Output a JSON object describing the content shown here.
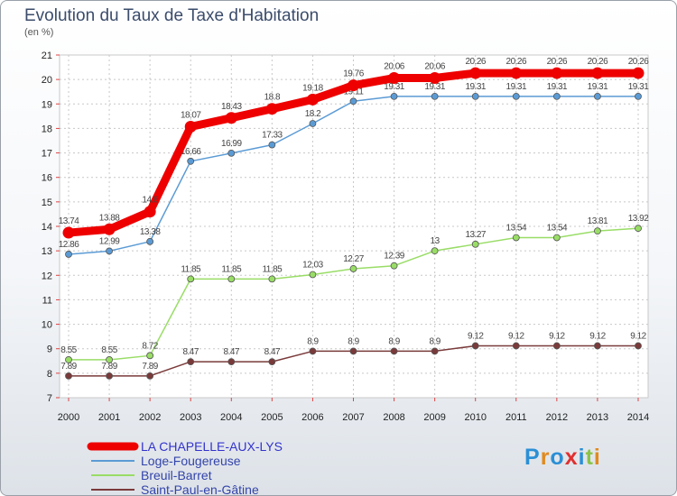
{
  "title": "Evolution du Taux de Taxe d'Habitation",
  "unit_label": "(en %)",
  "logo": "Proxiti",
  "chart_data": {
    "type": "line",
    "title": "Evolution du Taux de Taxe d'Habitation",
    "ylabel": "(en %)",
    "x": [
      "2000",
      "2001",
      "2002",
      "2003",
      "2004",
      "2005",
      "2006",
      "2007",
      "2008",
      "2009",
      "2010",
      "2011",
      "2012",
      "2013",
      "2014"
    ],
    "ylim": [
      7,
      21
    ],
    "yticks": [
      7,
      8,
      9,
      10,
      11,
      12,
      13,
      14,
      15,
      16,
      17,
      18,
      19,
      20,
      21
    ],
    "grid": true,
    "legend": "bottom-left",
    "series": [
      {
        "name": "LA CHAPELLE-AUX-LYS",
        "color": "#ee0000",
        "values": [
          13.74,
          13.88,
          14.6,
          18.07,
          18.43,
          18.8,
          19.18,
          19.76,
          20.06,
          20.06,
          20.26,
          20.26,
          20.26,
          20.26,
          20.26
        ],
        "labels": [
          "13.74",
          "13.88",
          "14.6",
          "18.07",
          "18.43",
          "18.8",
          "19.18",
          "19.76",
          "20.06",
          "20.06",
          "20.26",
          "20.26",
          "20.26",
          "20.26",
          "20.26"
        ]
      },
      {
        "name": "Loge-Fougereuse",
        "color": "#5b9bd5",
        "values": [
          12.86,
          12.99,
          13.38,
          16.66,
          16.99,
          17.33,
          18.2,
          19.11,
          19.31,
          19.31,
          19.31,
          19.31,
          19.31,
          19.31,
          19.31
        ],
        "labels": [
          "12.86",
          "12.99",
          "13.38",
          "16.66",
          "16.99",
          "17.33",
          "18.2",
          "19.11",
          "19.31",
          "19.31",
          "19.31",
          "19.31",
          "19.31",
          "19.31",
          "19.31"
        ]
      },
      {
        "name": "Breuil-Barret",
        "color": "#99dd66",
        "values": [
          8.55,
          8.55,
          8.72,
          11.85,
          11.85,
          11.85,
          12.03,
          12.27,
          12.39,
          13,
          13.27,
          13.54,
          13.54,
          13.81,
          13.92
        ],
        "labels": [
          "8.55",
          "8.55",
          "8.72",
          "11.85",
          "11.85",
          "11.85",
          "12.03",
          "12.27",
          "12.39",
          "13",
          "13.27",
          "13.54",
          "13.54",
          "13.81",
          "13.92"
        ]
      },
      {
        "name": "Saint-Paul-en-Gâtine",
        "color": "#7a3a3a",
        "values": [
          7.89,
          7.89,
          7.89,
          8.47,
          8.47,
          8.47,
          8.9,
          8.9,
          8.9,
          8.9,
          9.12,
          9.12,
          9.12,
          9.12,
          9.12
        ],
        "labels": [
          "7.89",
          "7.89",
          "7.89",
          "8.47",
          "8.47",
          "8.47",
          "8.9",
          "8.9",
          "8.9",
          "8.9",
          "9.12",
          "9.12",
          "9.12",
          "9.12",
          "9.12"
        ]
      }
    ]
  }
}
